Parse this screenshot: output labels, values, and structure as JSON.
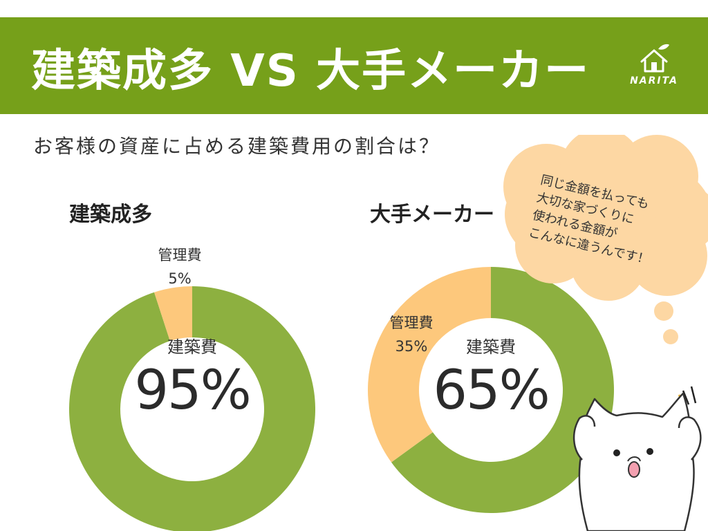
{
  "header": {
    "title": "建築成多 VS 大手メーカー",
    "logo_text": "NARITA"
  },
  "question": "お客様の資産に占める建築費用の割合は？",
  "bubble": {
    "lines": [
      "同じ金額を払っても",
      "大切な家づくりに",
      "使われる金額が",
      "こんなに違うんです！"
    ]
  },
  "colors": {
    "banner": "#76a01a",
    "construction": "#8db040",
    "management": "#fdc87c",
    "bubble": "#fdd7a3"
  },
  "chart_data": [
    {
      "type": "pie",
      "title": "建築成多",
      "slices": [
        {
          "label": "建築費",
          "value": 95,
          "value_text": "95%"
        },
        {
          "label": "管理費",
          "value": 5,
          "value_text": "5%"
        }
      ]
    },
    {
      "type": "pie",
      "title": "大手メーカー",
      "slices": [
        {
          "label": "建築費",
          "value": 65,
          "value_text": "65%"
        },
        {
          "label": "管理費",
          "value": 35,
          "value_text": "35%"
        }
      ]
    }
  ]
}
